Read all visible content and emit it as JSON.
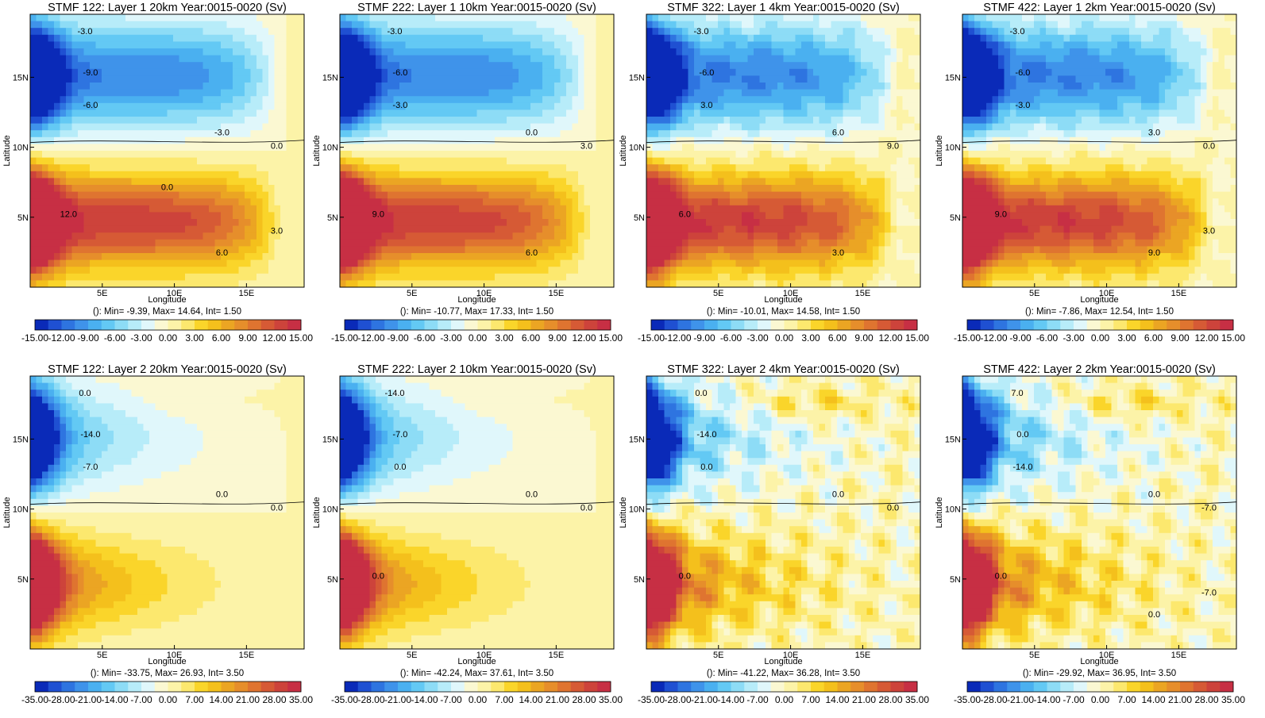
{
  "chart_data": [
    {
      "type": "heatmap",
      "title": "STMF 122: Layer 1 20km Year:0015-0020 (Sv)",
      "xlabel": "Longitude",
      "ylabel": "Latitude",
      "xticks": [
        "5E",
        "10E",
        "15E"
      ],
      "yticks": [
        "15N",
        "10N",
        "5N"
      ],
      "stats": "(): Min= -9.39, Max= 14.64, Int= 1.50",
      "colorbar_labels": [
        "-15.00",
        "-12.00",
        "-9.00",
        "-6.00",
        "-3.00",
        "0.00",
        "3.00",
        "6.00",
        "9.00",
        "12.00",
        "15.00"
      ],
      "contour_labels": [
        "-3.0",
        "-9.0",
        "-6.0",
        "-3.0",
        "0.0",
        "12.0",
        "6.0",
        "3.0",
        "0.0"
      ],
      "min": -9.39,
      "max": 14.64,
      "interval": 1.5
    },
    {
      "type": "heatmap",
      "title": "STMF 222: Layer 1 10km Year:0015-0020 (Sv)",
      "xlabel": "Longitude",
      "ylabel": "Latitude",
      "xticks": [
        "5E",
        "10E",
        "15E"
      ],
      "yticks": [
        "15N",
        "10N",
        "5N"
      ],
      "stats": "(): Min= -10.77, Max= 17.33, Int= 1.50",
      "colorbar_labels": [
        "-15.00",
        "-12.00",
        "-9.00",
        "-6.00",
        "-3.00",
        "0.00",
        "3.00",
        "6.00",
        "9.00",
        "12.00",
        "15.00"
      ],
      "contour_labels": [
        "-3.0",
        "-6.0",
        "-3.0",
        "0.0",
        "3.0",
        "9.0",
        "6.0"
      ],
      "min": -10.77,
      "max": 17.33,
      "interval": 1.5
    },
    {
      "type": "heatmap",
      "title": "STMF 322: Layer 1 4km Year:0015-0020 (Sv)",
      "xlabel": "Longitude",
      "ylabel": "Latitude",
      "xticks": [
        "5E",
        "10E",
        "15E"
      ],
      "yticks": [
        "15N",
        "10N",
        "5N"
      ],
      "stats": "(): Min= -10.01, Max= 14.58, Int= 1.50",
      "colorbar_labels": [
        "-15.00",
        "-12.00",
        "-9.00",
        "-6.00",
        "-3.00",
        "0.00",
        "3.00",
        "6.00",
        "9.00",
        "12.00",
        "15.00"
      ],
      "contour_labels": [
        "-3.0",
        "-6.0",
        "3.0",
        "6.0",
        "9.0",
        "6.0",
        "3.0"
      ],
      "min": -10.01,
      "max": 14.58,
      "interval": 1.5
    },
    {
      "type": "heatmap",
      "title": "STMF 422: Layer 1 2km Year:0015-0020 (Sv)",
      "xlabel": "Longitude",
      "ylabel": "Latitude",
      "xticks": [
        "5E",
        "10E",
        "15E"
      ],
      "yticks": [
        "15N",
        "10N",
        "5N"
      ],
      "stats": "(): Min= -7.86, Max= 12.54, Int= 1.50",
      "colorbar_labels": [
        "-15.00",
        "-12.00",
        "-9.00",
        "-6.00",
        "-3.00",
        "0.00",
        "3.00",
        "6.00",
        "9.00",
        "12.00",
        "15.00"
      ],
      "contour_labels": [
        "-3.0",
        "-6.0",
        "-3.0",
        "3.0",
        "0.0",
        "9.0",
        "9.0",
        "3.0"
      ],
      "min": -7.86,
      "max": 12.54,
      "interval": 1.5
    },
    {
      "type": "heatmap",
      "title": "STMF 122: Layer 2 20km Year:0015-0020 (Sv)",
      "xlabel": "Longitude",
      "ylabel": "Latitude",
      "xticks": [
        "5E",
        "10E",
        "15E"
      ],
      "yticks": [
        "15N",
        "10N",
        "5N"
      ],
      "stats": "(): Min= -33.75, Max= 26.93, Int= 3.50",
      "colorbar_labels": [
        "-35.00",
        "-28.00",
        "-21.00",
        "-14.00",
        "-7.00",
        "0.00",
        "7.00",
        "14.00",
        "21.00",
        "28.00",
        "35.00"
      ],
      "contour_labels": [
        "0.0",
        "-14.0",
        "-7.0",
        "0.0",
        "0.0"
      ],
      "min": -33.75,
      "max": 26.93,
      "interval": 3.5
    },
    {
      "type": "heatmap",
      "title": "STMF 222: Layer 2 10km Year:0015-0020 (Sv)",
      "xlabel": "Longitude",
      "ylabel": "Latitude",
      "xticks": [
        "5E",
        "10E",
        "15E"
      ],
      "yticks": [
        "15N",
        "10N",
        "5N"
      ],
      "stats": "(): Min= -42.24, Max= 37.61, Int= 3.50",
      "colorbar_labels": [
        "-35.00",
        "-28.00",
        "-21.00",
        "-14.00",
        "-7.00",
        "0.00",
        "7.00",
        "14.00",
        "21.00",
        "28.00",
        "35.00"
      ],
      "contour_labels": [
        "-14.0",
        "-7.0",
        "0.0",
        "0.0",
        "0.0",
        "0.0"
      ],
      "min": -42.24,
      "max": 37.61,
      "interval": 3.5
    },
    {
      "type": "heatmap",
      "title": "STMF 322: Layer 2 4km Year:0015-0020 (Sv)",
      "xlabel": "Longitude",
      "ylabel": "Latitude",
      "xticks": [
        "5E",
        "10E",
        "15E"
      ],
      "yticks": [
        "15N",
        "10N",
        "5N"
      ],
      "stats": "(): Min= -41.22, Max= 36.28, Int= 3.50",
      "colorbar_labels": [
        "-35.00",
        "-28.00",
        "-21.00",
        "-14.00",
        "-7.00",
        "0.00",
        "7.00",
        "14.00",
        "21.00",
        "28.00",
        "35.00"
      ],
      "contour_labels": [
        "0.0",
        "-14.0",
        "0.0",
        "0.0",
        "0.0",
        "0.0"
      ],
      "min": -41.22,
      "max": 36.28,
      "interval": 3.5
    },
    {
      "type": "heatmap",
      "title": "STMF 422: Layer 2 2km Year:0015-0020 (Sv)",
      "xlabel": "Longitude",
      "ylabel": "Latitude",
      "xticks": [
        "5E",
        "10E",
        "15E"
      ],
      "yticks": [
        "15N",
        "10N",
        "5N"
      ],
      "stats": "(): Min= -29.92, Max= 36.95, Int= 3.50",
      "colorbar_labels": [
        "-35.00",
        "-28.00",
        "-21.00",
        "-14.00",
        "-7.00",
        "0.00",
        "7.00",
        "14.00",
        "21.00",
        "28.00",
        "35.00"
      ],
      "contour_labels": [
        "7.0",
        "0.0",
        "-14.0",
        "0.0",
        "-7.0",
        "0.0",
        "0.0",
        "-7.0"
      ],
      "min": -29.92,
      "max": 36.95,
      "interval": 3.5
    }
  ],
  "colorbar_colors": [
    "#0a2ab8",
    "#1f50d2",
    "#2e74e0",
    "#3f93ea",
    "#4ab0f0",
    "#63c9f4",
    "#8ddcf6",
    "#b7ecf9",
    "#e0f7fb",
    "#fbf8d2",
    "#fcf3a8",
    "#fce86e",
    "#fad52a",
    "#f4c01c",
    "#eba523",
    "#e68e2b",
    "#df7430",
    "#d65a35",
    "#cd433b",
    "#c72f44"
  ]
}
